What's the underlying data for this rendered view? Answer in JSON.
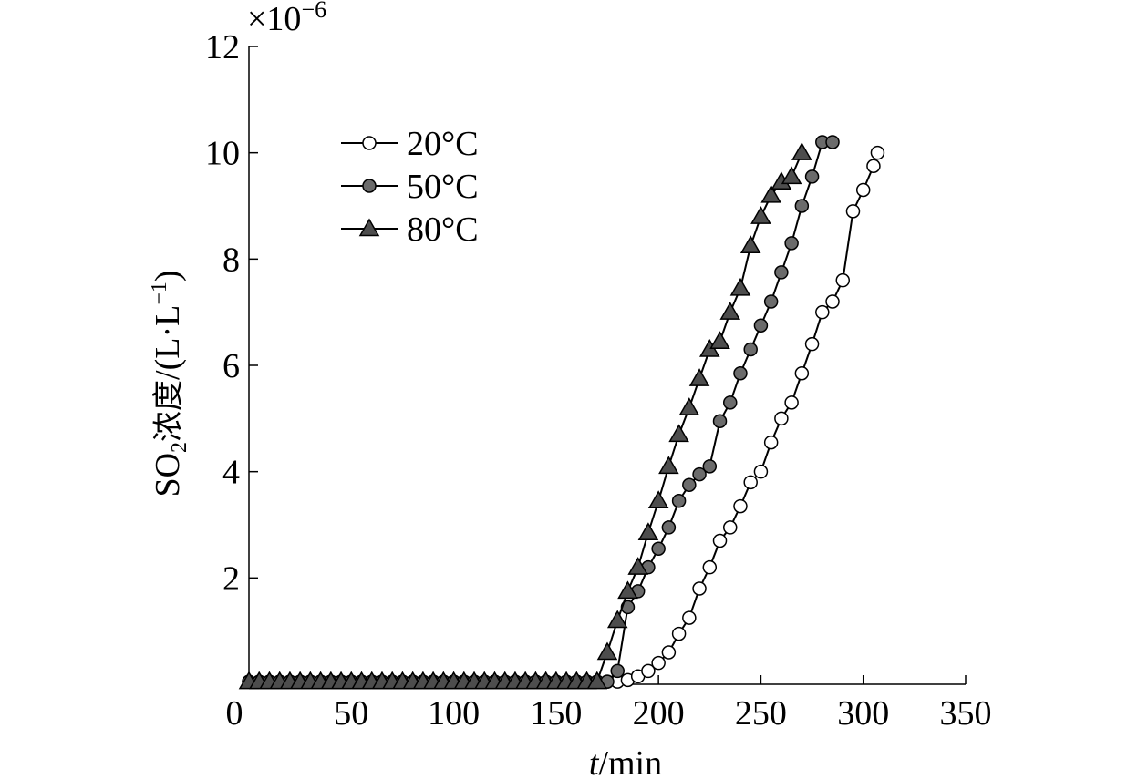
{
  "chart_data": {
    "type": "line",
    "xlabel_italic": "t",
    "xlabel_unit": "/min",
    "ylabel_main": "SO",
    "ylabel_sub": "2",
    "ylabel_cn": "浓度",
    "ylabel_unit_open": "/(L·L",
    "ylabel_unit_sup": "−1",
    "ylabel_unit_close": ")",
    "multiplier_base": "×10",
    "multiplier_exp": "−6",
    "xlim": [
      0,
      350
    ],
    "ylim": [
      0,
      12
    ],
    "xticks": [
      0,
      50,
      100,
      150,
      200,
      250,
      300,
      350
    ],
    "xtick_labels": [
      "0",
      "50",
      "100",
      "150",
      "200",
      "250",
      "300",
      "350"
    ],
    "yticks": [
      2,
      4,
      6,
      8,
      10,
      12
    ],
    "ytick_labels": [
      "2",
      "4",
      "6",
      "8",
      "10",
      "12"
    ],
    "grid": false,
    "legend_position": "top-left",
    "series": [
      {
        "name": "20°C",
        "marker": "circle-open",
        "x": [
          0,
          5,
          10,
          15,
          20,
          25,
          30,
          35,
          40,
          45,
          50,
          55,
          60,
          65,
          70,
          75,
          80,
          85,
          90,
          95,
          100,
          105,
          110,
          115,
          120,
          125,
          130,
          135,
          140,
          145,
          150,
          155,
          160,
          165,
          170,
          175,
          180,
          185,
          190,
          195,
          200,
          205,
          210,
          215,
          220,
          225,
          230,
          235,
          240,
          245,
          250,
          255,
          260,
          265,
          270,
          275,
          280,
          285,
          290,
          295,
          300,
          305,
          307
        ],
        "y": [
          0.05,
          0.05,
          0.05,
          0.05,
          0.05,
          0.05,
          0.05,
          0.05,
          0.05,
          0.05,
          0.05,
          0.05,
          0.05,
          0.05,
          0.05,
          0.05,
          0.05,
          0.05,
          0.05,
          0.05,
          0.05,
          0.05,
          0.05,
          0.05,
          0.05,
          0.05,
          0.05,
          0.05,
          0.05,
          0.05,
          0.05,
          0.05,
          0.05,
          0.05,
          0.05,
          0.05,
          0.05,
          0.08,
          0.15,
          0.25,
          0.4,
          0.6,
          0.95,
          1.25,
          1.8,
          2.2,
          2.7,
          2.95,
          3.35,
          3.8,
          4.0,
          4.55,
          5.0,
          5.3,
          5.85,
          6.4,
          7.0,
          7.2,
          7.6,
          8.9,
          9.3,
          9.75,
          10.0
        ]
      },
      {
        "name": "50°C",
        "marker": "circle-filled",
        "x": [
          0,
          5,
          10,
          15,
          20,
          25,
          30,
          35,
          40,
          45,
          50,
          55,
          60,
          65,
          70,
          75,
          80,
          85,
          90,
          95,
          100,
          105,
          110,
          115,
          120,
          125,
          130,
          135,
          140,
          145,
          150,
          155,
          160,
          165,
          170,
          175,
          180,
          185,
          190,
          195,
          200,
          205,
          210,
          215,
          220,
          225,
          230,
          235,
          240,
          245,
          250,
          255,
          260,
          265,
          270,
          275,
          280,
          285
        ],
        "y": [
          0.05,
          0.05,
          0.05,
          0.05,
          0.05,
          0.05,
          0.05,
          0.05,
          0.05,
          0.05,
          0.05,
          0.05,
          0.05,
          0.05,
          0.05,
          0.05,
          0.05,
          0.05,
          0.05,
          0.05,
          0.05,
          0.05,
          0.05,
          0.05,
          0.05,
          0.05,
          0.05,
          0.05,
          0.05,
          0.05,
          0.05,
          0.05,
          0.05,
          0.05,
          0.05,
          0.05,
          0.25,
          1.45,
          1.75,
          2.2,
          2.55,
          2.95,
          3.45,
          3.75,
          3.95,
          4.1,
          4.95,
          5.3,
          5.85,
          6.3,
          6.75,
          7.2,
          7.75,
          8.3,
          9.0,
          9.55,
          10.2,
          10.2
        ]
      },
      {
        "name": "80°C",
        "marker": "triangle-filled",
        "x": [
          0,
          5,
          10,
          15,
          20,
          25,
          30,
          35,
          40,
          45,
          50,
          55,
          60,
          65,
          70,
          75,
          80,
          85,
          90,
          95,
          100,
          105,
          110,
          115,
          120,
          125,
          130,
          135,
          140,
          145,
          150,
          155,
          160,
          165,
          170,
          175,
          180,
          185,
          190,
          195,
          200,
          205,
          210,
          215,
          220,
          225,
          230,
          235,
          240,
          245,
          250,
          255,
          260,
          265,
          270
        ],
        "y": [
          0.05,
          0.05,
          0.05,
          0.05,
          0.05,
          0.05,
          0.05,
          0.05,
          0.05,
          0.05,
          0.05,
          0.05,
          0.05,
          0.05,
          0.05,
          0.05,
          0.05,
          0.05,
          0.05,
          0.05,
          0.05,
          0.05,
          0.05,
          0.05,
          0.05,
          0.05,
          0.05,
          0.05,
          0.05,
          0.05,
          0.05,
          0.05,
          0.05,
          0.05,
          0.05,
          0.6,
          1.2,
          1.75,
          2.2,
          2.85,
          3.45,
          4.1,
          4.7,
          5.2,
          5.75,
          6.3,
          6.45,
          7.0,
          7.45,
          8.25,
          8.8,
          9.2,
          9.45,
          9.55,
          10.0
        ]
      }
    ]
  }
}
